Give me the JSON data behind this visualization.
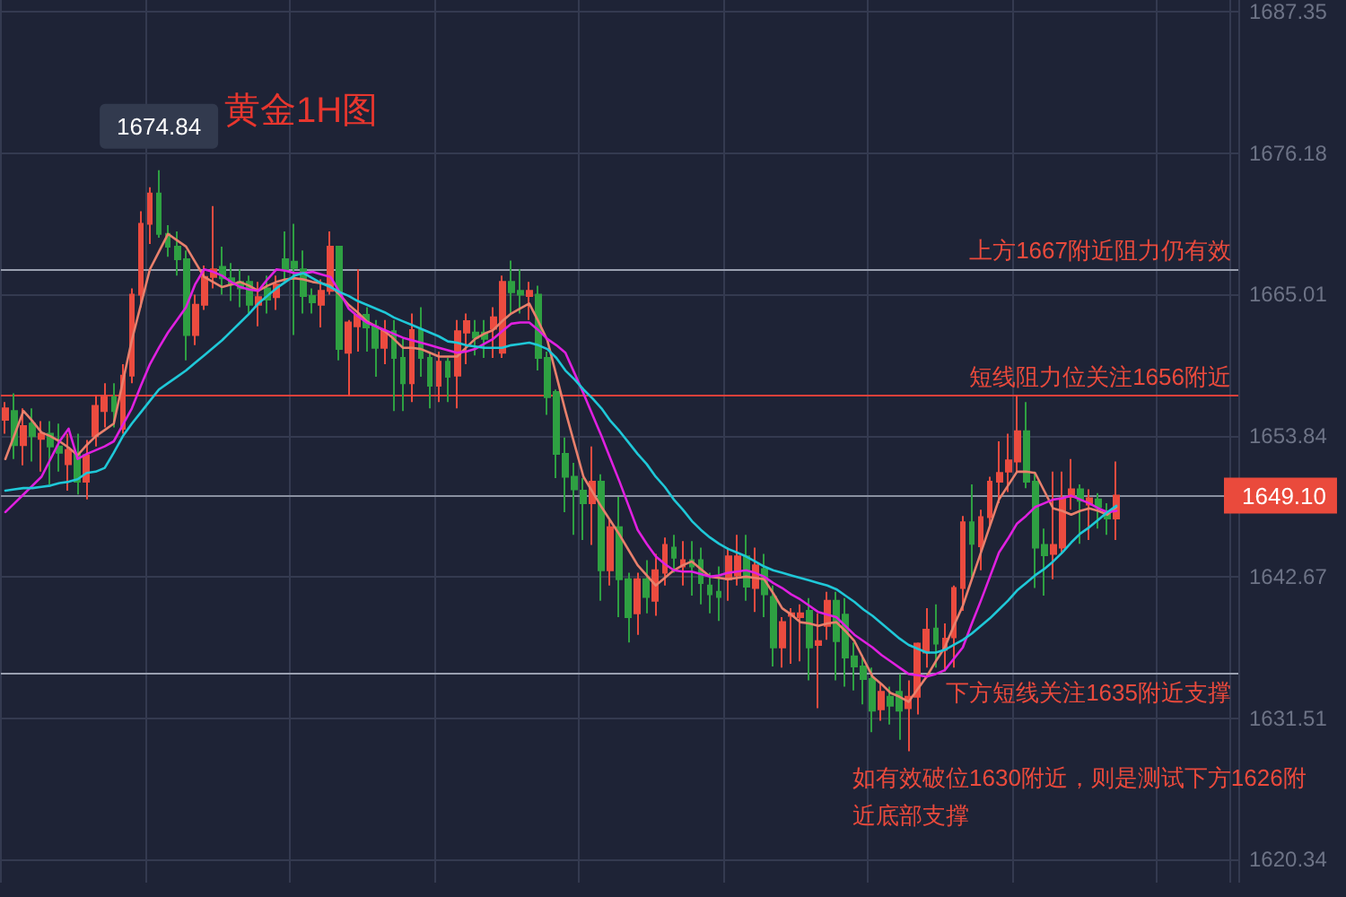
{
  "chart_data": {
    "type": "candlestick",
    "title": "黄金1H图",
    "categories": [
      null,
      null,
      null,
      null,
      null,
      null,
      null,
      null,
      null,
      null,
      null,
      null,
      null,
      null,
      null,
      null,
      null,
      null,
      null,
      null,
      null,
      null,
      null,
      null,
      null,
      null,
      null,
      null,
      null,
      null,
      null,
      null,
      null,
      null,
      null,
      null,
      null,
      null,
      null,
      null,
      null,
      null,
      null,
      null,
      null,
      null,
      null,
      null,
      null,
      null,
      null,
      null,
      null,
      null,
      null,
      null,
      null,
      null,
      null,
      null,
      null,
      null,
      null,
      null,
      null,
      null,
      null,
      null,
      null,
      null,
      null,
      null,
      null,
      null,
      null,
      null,
      null,
      null,
      null,
      null,
      null,
      null,
      null,
      null,
      null,
      null,
      null,
      null,
      null,
      null,
      null,
      null,
      null,
      null,
      null,
      null,
      null,
      null,
      null,
      null,
      null,
      null,
      null,
      null,
      null,
      null,
      null,
      null,
      null,
      null,
      null,
      null,
      null,
      null,
      null,
      null,
      null,
      null,
      null,
      null,
      null,
      null,
      null,
      null
    ],
    "colors": [
      "#eb4b3f",
      "#2ea042",
      "#eb4b3f",
      "#2ea042",
      "#eb4b3f",
      "#2ea042",
      "#2ea042",
      "#eb4b3f",
      "#2ea042",
      "#eb4b3f",
      "#eb4b3f",
      "#eb4b3f",
      "#2ea042",
      "#eb4b3f",
      "#eb4b3f",
      "#eb4b3f",
      "#eb4b3f",
      "#2ea042",
      "#2ea042",
      "#2ea042",
      "#2ea042",
      "#eb4b3f",
      "#eb4b3f",
      "#eb4b3f",
      "#2ea042",
      "#2ea042",
      "#2ea042",
      "#2ea042",
      "#eb4b3f",
      "#2ea042",
      "#eb4b3f",
      "#2ea042",
      "#2ea042",
      "#2ea042",
      "#2ea042",
      "#eb4b3f",
      "#eb4b3f",
      "#2ea042",
      "#eb4b3f",
      "#eb4b3f",
      "#2ea042",
      "#2ea042",
      "#eb4b3f",
      "#2ea042",
      "#2ea042",
      "#eb4b3f",
      "#2ea042",
      "#2ea042",
      "#eb4b3f",
      "#2ea042",
      "#eb4b3f",
      "#eb4b3f",
      "#2ea042",
      "#2ea042",
      "#eb4b3f",
      "#eb4b3f",
      "#2ea042",
      "#2ea042",
      "#eb4b3f",
      "#2ea042",
      "#2ea042",
      "#2ea042",
      "#2ea042",
      "#2ea042",
      "#2ea042",
      "#eb4b3f",
      "#2ea042",
      "#eb4b3f",
      "#2ea042",
      "#2ea042",
      "#eb4b3f",
      "#2ea042",
      "#eb4b3f",
      "#eb4b3f",
      "#2ea042",
      "#eb4b3f",
      "#2ea042",
      "#2ea042",
      "#2ea042",
      "#2ea042",
      "#eb4b3f",
      "#eb4b3f",
      "#2ea042",
      "#eb4b3f",
      "#2ea042",
      "#2ea042",
      "#eb4b3f",
      "#eb4b3f",
      "#eb4b3f",
      "#2ea042",
      "#eb4b3f",
      "#eb4b3f",
      "#2ea042",
      "#2ea042",
      "#2ea042",
      "#2ea042",
      "#2ea042",
      "#eb4b3f",
      "#2ea042",
      "#2ea042",
      "#eb4b3f",
      "#eb4b3f",
      "#eb4b3f",
      "#2ea042",
      "#eb4b3f",
      "#eb4b3f",
      "#eb4b3f",
      "#2ea042",
      "#eb4b3f",
      "#eb4b3f",
      "#eb4b3f",
      "#eb4b3f",
      "#eb4b3f",
      "#2ea042",
      "#2ea042",
      "#2ea042",
      "#eb4b3f",
      "#eb4b3f",
      "#eb4b3f",
      "#2ea042",
      "#eb4b3f",
      "#2ea042",
      "#2ea042",
      "#eb4b3f"
    ],
    "ohlc": [
      [
        1655.1,
        1656.5,
        1654.0,
        1656.0
      ],
      [
        1655.8,
        1657.2,
        1652.0,
        1653.1
      ],
      [
        1653.1,
        1656.0,
        1651.5,
        1654.6
      ],
      [
        1654.8,
        1656.0,
        1651.8,
        1653.8
      ],
      [
        1653.6,
        1655.0,
        1651.0,
        1654.0
      ],
      [
        1654.0,
        1655.0,
        1650.0,
        1653.0
      ],
      [
        1653.0,
        1654.8,
        1651.0,
        1652.5
      ],
      [
        1651.6,
        1654.0,
        1649.5,
        1652.7
      ],
      [
        1652.5,
        1654.0,
        1649.2,
        1650.2
      ],
      [
        1650.2,
        1653.5,
        1648.8,
        1652.3
      ],
      [
        1653.8,
        1657.0,
        1653.0,
        1656.2
      ],
      [
        1655.8,
        1658.0,
        1654.5,
        1656.9
      ],
      [
        1656.9,
        1658.0,
        1654.5,
        1655.8
      ],
      [
        1654.4,
        1659.5,
        1654.0,
        1658.6
      ],
      [
        1658.6,
        1665.5,
        1658.0,
        1665.0
      ],
      [
        1665.0,
        1671.6,
        1664.0,
        1670.6
      ],
      [
        1670.6,
        1673.5,
        1669.0,
        1673.0
      ],
      [
        1673.0,
        1674.84,
        1669.5,
        1669.8
      ],
      [
        1669.8,
        1670.5,
        1668.0,
        1668.8
      ],
      [
        1668.8,
        1670.0,
        1666.5,
        1667.8
      ],
      [
        1667.8,
        1668.5,
        1659.8,
        1661.8
      ],
      [
        1661.8,
        1665.0,
        1661.0,
        1664.2
      ],
      [
        1664.2,
        1667.3,
        1663.8,
        1666.4
      ],
      [
        1666.4,
        1672.0,
        1665.5,
        1667.0
      ],
      [
        1667.2,
        1668.8,
        1665.0,
        1666.3
      ],
      [
        1666.3,
        1667.5,
        1664.5,
        1665.8
      ],
      [
        1666.0,
        1667.0,
        1664.0,
        1665.5
      ],
      [
        1666.0,
        1666.5,
        1663.5,
        1664.2
      ],
      [
        1664.2,
        1666.0,
        1662.5,
        1664.8
      ],
      [
        1665.5,
        1666.5,
        1663.5,
        1664.6
      ],
      [
        1664.8,
        1666.5,
        1663.8,
        1665.8
      ],
      [
        1667.8,
        1670.0,
        1666.0,
        1667.0
      ],
      [
        1667.6,
        1670.6,
        1661.8,
        1667.1
      ],
      [
        1667.0,
        1668.5,
        1663.5,
        1664.9
      ],
      [
        1664.9,
        1665.5,
        1663.5,
        1664.4
      ],
      [
        1664.2,
        1666.2,
        1662.4,
        1665.3
      ],
      [
        1665.3,
        1670.0,
        1665.0,
        1668.8
      ],
      [
        1668.8,
        1668.8,
        1659.8,
        1660.7
      ],
      [
        1660.4,
        1663.0,
        1657.0,
        1662.8
      ],
      [
        1662.5,
        1667.0,
        1660.5,
        1663.4
      ],
      [
        1663.4,
        1664.0,
        1660.5,
        1662.4
      ],
      [
        1662.5,
        1663.0,
        1658.5,
        1660.8
      ],
      [
        1660.8,
        1663.0,
        1659.5,
        1662.1
      ],
      [
        1662.1,
        1663.0,
        1655.8,
        1660.0
      ],
      [
        1660.0,
        1661.5,
        1655.8,
        1658.0
      ],
      [
        1658.0,
        1663.5,
        1656.5,
        1662.2
      ],
      [
        1662.2,
        1664.0,
        1658.5,
        1660.0
      ],
      [
        1660.0,
        1660.5,
        1656.0,
        1657.8
      ],
      [
        1657.8,
        1660.5,
        1656.5,
        1659.7
      ],
      [
        1659.7,
        1660.0,
        1656.5,
        1658.5
      ],
      [
        1658.6,
        1663.0,
        1656.0,
        1662.1
      ],
      [
        1662.0,
        1663.5,
        1659.5,
        1662.9
      ],
      [
        1662.0,
        1663.0,
        1660.2,
        1661.6
      ],
      [
        1662.0,
        1663.0,
        1660.0,
        1661.5
      ],
      [
        1662.3,
        1664.0,
        1660.0,
        1663.2
      ],
      [
        1660.4,
        1666.5,
        1660.0,
        1666.0
      ],
      [
        1666.0,
        1667.7,
        1663.5,
        1665.2
      ],
      [
        1665.3,
        1667.0,
        1663.5,
        1665.0
      ],
      [
        1664.9,
        1666.0,
        1663.0,
        1665.3
      ],
      [
        1665.0,
        1665.7,
        1659.0,
        1660.0
      ],
      [
        1660.0,
        1660.5,
        1655.5,
        1656.9
      ],
      [
        1657.3,
        1657.5,
        1650.5,
        1652.4
      ],
      [
        1652.4,
        1653.7,
        1647.8,
        1650.6
      ],
      [
        1650.6,
        1651.7,
        1646.0,
        1649.6
      ],
      [
        1649.5,
        1650.5,
        1645.6,
        1648.5
      ],
      [
        1648.5,
        1653.0,
        1645.2,
        1650.2
      ],
      [
        1650.2,
        1650.8,
        1640.8,
        1643.2
      ],
      [
        1643.2,
        1647.2,
        1642.0,
        1646.6
      ],
      [
        1646.6,
        1649.0,
        1639.5,
        1642.5
      ],
      [
        1642.5,
        1643.0,
        1637.5,
        1639.5
      ],
      [
        1639.8,
        1643.0,
        1638.1,
        1642.5
      ],
      [
        1642.5,
        1644.0,
        1639.8,
        1641.1
      ],
      [
        1640.8,
        1644.5,
        1639.6,
        1643.2
      ],
      [
        1643.0,
        1645.8,
        1642.0,
        1645.2
      ],
      [
        1645.0,
        1646.0,
        1643.0,
        1644.2
      ],
      [
        1643.5,
        1645.5,
        1642.0,
        1644.0
      ],
      [
        1644.0,
        1645.5,
        1641.2,
        1643.5
      ],
      [
        1644.0,
        1645.0,
        1640.5,
        1642.2
      ],
      [
        1642.0,
        1643.0,
        1639.8,
        1641.3
      ],
      [
        1641.5,
        1643.5,
        1639.2,
        1641.1
      ],
      [
        1642.5,
        1645.0,
        1640.8,
        1644.3
      ],
      [
        1642.8,
        1646.0,
        1642.0,
        1644.3
      ],
      [
        1644.3,
        1646.0,
        1640.8,
        1641.9
      ],
      [
        1641.8,
        1645.0,
        1639.9,
        1643.6
      ],
      [
        1643.3,
        1644.5,
        1639.5,
        1641.3
      ],
      [
        1641.1,
        1642.0,
        1635.6,
        1637.1
      ],
      [
        1637.1,
        1639.5,
        1635.5,
        1639.1
      ],
      [
        1639.6,
        1640.2,
        1635.8,
        1639.8
      ],
      [
        1639.5,
        1640.5,
        1636.0,
        1639.8
      ],
      [
        1640.0,
        1641.0,
        1634.5,
        1637.1
      ],
      [
        1637.3,
        1639.8,
        1632.3,
        1637.6
      ],
      [
        1638.8,
        1641.5,
        1637.7,
        1640.8
      ],
      [
        1640.8,
        1641.5,
        1634.5,
        1637.6
      ],
      [
        1639.7,
        1641.0,
        1634.0,
        1636.3
      ],
      [
        1636.4,
        1637.5,
        1633.7,
        1635.6
      ],
      [
        1635.6,
        1636.5,
        1632.6,
        1634.6
      ],
      [
        1634.6,
        1635.5,
        1630.4,
        1632.1
      ],
      [
        1632.2,
        1634.3,
        1631.3,
        1633.6
      ],
      [
        1633.2,
        1634.0,
        1631.0,
        1632.5
      ],
      [
        1633.6,
        1635.0,
        1629.8,
        1632.1
      ],
      [
        1632.3,
        1634.5,
        1628.9,
        1633.2
      ],
      [
        1633.2,
        1637.5,
        1631.8,
        1637.4
      ],
      [
        1636.7,
        1640.2,
        1635.5,
        1638.5
      ],
      [
        1638.6,
        1640.5,
        1635.5,
        1637.4
      ],
      [
        1636.9,
        1639.0,
        1635.2,
        1637.8
      ],
      [
        1637.9,
        1642.0,
        1635.5,
        1641.8
      ],
      [
        1641.8,
        1647.5,
        1640.0,
        1647.0
      ],
      [
        1647.0,
        1650.0,
        1642.5,
        1645.3
      ],
      [
        1645.1,
        1648.0,
        1643.2,
        1647.4
      ],
      [
        1647.4,
        1650.6,
        1646.7,
        1650.2
      ],
      [
        1650.2,
        1653.4,
        1648.5,
        1650.9
      ],
      [
        1651.0,
        1654.0,
        1649.4,
        1651.9
      ],
      [
        1651.8,
        1657.0,
        1651.0,
        1654.2
      ],
      [
        1654.2,
        1656.5,
        1649.7,
        1650.2
      ],
      [
        1650.2,
        1651.0,
        1641.8,
        1645.0
      ],
      [
        1645.2,
        1646.5,
        1641.2,
        1644.4
      ],
      [
        1644.5,
        1651.0,
        1642.5,
        1645.2
      ],
      [
        1645.0,
        1651.0,
        1644.5,
        1648.9
      ],
      [
        1649.0,
        1652.0,
        1648.0,
        1649.6
      ],
      [
        1649.6,
        1650.0,
        1645.3,
        1648.7
      ],
      [
        1648.4,
        1649.6,
        1645.6,
        1648.9
      ],
      [
        1648.8,
        1649.3,
        1646.5,
        1648.2
      ],
      [
        1647.8,
        1648.5,
        1646.0,
        1647.3
      ],
      [
        1647.3,
        1651.8,
        1645.6,
        1649.1
      ]
    ],
    "series": [
      {
        "type": "line",
        "color": "#e9806c",
        "values": [
          1652.0,
          1653.9,
          1655.8,
          1655.0,
          1654.1,
          1653.8,
          1653.4,
          1652.9,
          1652.3,
          1653.1,
          1653.8,
          1654.3,
          1654.8,
          1658.1,
          1661.4,
          1664.2,
          1667.0,
          1668.4,
          1669.8,
          1669.3,
          1668.8,
          1667.6,
          1666.4,
          1666.0,
          1665.6,
          1665.8,
          1666.0,
          1665.7,
          1665.3,
          1665.7,
          1666.0,
          1666.2,
          1666.3,
          1666.2,
          1666.0,
          1665.9,
          1665.7,
          1665.0,
          1664.2,
          1663.6,
          1662.9,
          1662.5,
          1662.1,
          1661.5,
          1660.8,
          1660.8,
          1660.7,
          1660.4,
          1660.1,
          1660.1,
          1660.1,
          1660.8,
          1661.5,
          1661.9,
          1662.2,
          1662.9,
          1663.5,
          1663.9,
          1664.3,
          1662.9,
          1661.4,
          1658.6,
          1655.8,
          1653.2,
          1650.6,
          1649.4,
          1648.2,
          1647.1,
          1646.0,
          1644.8,
          1643.6,
          1642.8,
          1642.0,
          1642.6,
          1643.2,
          1643.6,
          1643.9,
          1643.3,
          1642.7,
          1642.6,
          1642.5,
          1642.6,
          1642.7,
          1642.6,
          1642.5,
          1641.4,
          1640.2,
          1639.7,
          1639.1,
          1639.0,
          1638.8,
          1639.0,
          1639.1,
          1638.4,
          1637.6,
          1636.2,
          1634.8,
          1634.2,
          1633.5,
          1633.2,
          1632.8,
          1633.8,
          1634.8,
          1636.0,
          1637.1,
          1638.8,
          1640.4,
          1642.5,
          1644.6,
          1646.7,
          1648.8,
          1649.9,
          1651.0,
          1651.0,
          1650.9,
          1649.5,
          1648.1,
          1647.9,
          1647.6,
          1647.9,
          1648.1,
          1647.9,
          1647.6,
          1648.2
        ]
      },
      {
        "type": "line",
        "color": "#e020e0",
        "values": [
          1647.8,
          1648.5,
          1649.2,
          1649.9,
          1650.6,
          1652.0,
          1653.4,
          1654.4,
          1652.0,
          1652.4,
          1652.7,
          1653.0,
          1653.4,
          1654.7,
          1656.0,
          1657.8,
          1659.5,
          1660.8,
          1662.0,
          1663.0,
          1664.0,
          1665.8,
          1667.0,
          1666.8,
          1666.5,
          1666.0,
          1665.6,
          1665.4,
          1665.3,
          1666.2,
          1667.0,
          1666.9,
          1666.7,
          1666.7,
          1666.8,
          1666.6,
          1666.4,
          1665.2,
          1663.9,
          1663.3,
          1662.8,
          1662.5,
          1662.2,
          1661.9,
          1661.6,
          1661.4,
          1661.2,
          1661.0,
          1660.8,
          1660.6,
          1660.4,
          1660.5,
          1660.7,
          1661.1,
          1661.5,
          1662.1,
          1662.7,
          1662.8,
          1662.8,
          1662.2,
          1661.5,
          1661.0,
          1660.4,
          1658.8,
          1657.2,
          1655.5,
          1653.8,
          1652.0,
          1650.2,
          1648.3,
          1646.4,
          1645.3,
          1644.3,
          1643.7,
          1643.2,
          1643.1,
          1643.1,
          1642.9,
          1642.7,
          1642.8,
          1643.0,
          1643.1,
          1643.2,
          1643.0,
          1642.7,
          1642.2,
          1641.8,
          1641.3,
          1640.9,
          1640.4,
          1639.9,
          1639.7,
          1639.5,
          1638.8,
          1638.1,
          1637.6,
          1637.1,
          1636.5,
          1636.0,
          1635.5,
          1635.0,
          1634.9,
          1634.8,
          1635.0,
          1635.3,
          1636.2,
          1637.1,
          1639.0,
          1640.8,
          1642.7,
          1644.6,
          1645.7,
          1646.9,
          1647.5,
          1648.2,
          1648.5,
          1648.8,
          1648.9,
          1649.1,
          1648.8,
          1648.5,
          1648.1,
          1647.8,
          1647.9
        ]
      },
      {
        "type": "line",
        "color": "#1fc8d8",
        "values": [
          1649.5,
          1649.6,
          1649.7,
          1649.7,
          1649.8,
          1649.9,
          1650.1,
          1650.2,
          1650.4,
          1650.9,
          1651.0,
          1651.3,
          1652.5,
          1653.8,
          1654.8,
          1655.7,
          1656.6,
          1657.5,
          1658.0,
          1658.5,
          1659.0,
          1659.6,
          1660.2,
          1660.8,
          1661.4,
          1662.1,
          1662.8,
          1663.5,
          1664.3,
          1664.9,
          1665.5,
          1666.0,
          1666.5,
          1666.7,
          1666.3,
          1665.9,
          1665.6,
          1665.2,
          1664.9,
          1664.5,
          1664.2,
          1663.9,
          1663.6,
          1663.2,
          1662.9,
          1662.6,
          1662.3,
          1662.0,
          1661.7,
          1661.3,
          1661.2,
          1661.0,
          1660.9,
          1660.8,
          1660.8,
          1660.8,
          1661.0,
          1661.1,
          1661.2,
          1661.0,
          1660.7,
          1660.0,
          1659.0,
          1658.3,
          1657.5,
          1656.8,
          1656.0,
          1655.0,
          1654.2,
          1653.3,
          1652.4,
          1651.6,
          1650.6,
          1649.8,
          1648.8,
          1648.0,
          1647.1,
          1646.4,
          1645.8,
          1645.3,
          1644.9,
          1644.6,
          1644.3,
          1643.9,
          1643.5,
          1643.2,
          1643.0,
          1642.8,
          1642.6,
          1642.4,
          1642.2,
          1642.0,
          1641.7,
          1641.2,
          1640.7,
          1640.1,
          1639.6,
          1639.0,
          1638.4,
          1637.8,
          1637.3,
          1637.0,
          1636.7,
          1636.7,
          1636.9,
          1637.3,
          1637.7,
          1638.2,
          1638.8,
          1639.4,
          1640.1,
          1640.8,
          1641.6,
          1642.2,
          1642.8,
          1643.3,
          1643.9,
          1644.6,
          1645.4,
          1646.1,
          1646.6,
          1647.2,
          1647.8,
          1648.3
        ]
      }
    ],
    "ylim": [
      1618.5,
      1688.3
    ],
    "yticks": [
      1620.34,
      1631.51,
      1642.67,
      1653.84,
      1665.01,
      1676.18,
      1687.35
    ],
    "grid": true,
    "marker": "none",
    "ref_lines": [
      {
        "axis": "y",
        "value": 1667,
        "label": "上方1667附近阻力仍有效",
        "color": "#9aa0b0"
      },
      {
        "axis": "y",
        "value": 1657,
        "label": "短线阻力位关注1656附近",
        "color": "#e8403a"
      },
      {
        "axis": "y",
        "value": 1649.1,
        "label": "1649.10",
        "color": "#8a90a0"
      },
      {
        "axis": "y",
        "value": 1635,
        "label": "下方短线关注1635附近支撑",
        "color": "#9aa0b0"
      }
    ],
    "annotations": [
      {
        "text": "1674.84",
        "y": 1674.84
      },
      "如有效破位1630附近，则是测试下方1626附近底部支撑"
    ]
  }
}
